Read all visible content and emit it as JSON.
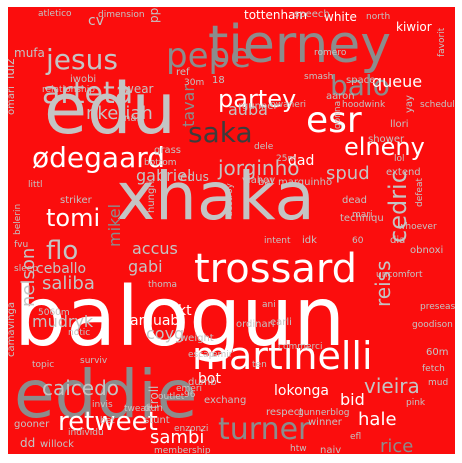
{
  "palette": {
    "background": "#fb0d0d",
    "silver": "#c4c4c4",
    "gray": "#8c8c8c",
    "dark_gray": "#5a5a5a",
    "white": "#ffffff",
    "charcoal": "#3c3c3c"
  },
  "words": [
    {
      "text": "balogun",
      "color": "white"
    },
    {
      "text": "xhaka",
      "color": "silver"
    },
    {
      "text": "edu",
      "color": "silver"
    },
    {
      "text": "eddie",
      "color": "gray"
    },
    {
      "text": "tierney",
      "color": "gray"
    },
    {
      "text": "trossard",
      "color": "white"
    },
    {
      "text": "martinelli",
      "color": "white"
    },
    {
      "text": "esr",
      "color": "white"
    },
    {
      "text": "pepe",
      "color": "gray"
    },
    {
      "text": "arteta",
      "color": "silver"
    },
    {
      "text": "jesus",
      "color": "silver"
    },
    {
      "text": "ødegaard",
      "color": "white"
    },
    {
      "text": "saka",
      "color": "charcoal"
    },
    {
      "text": "balo",
      "color": "gray"
    },
    {
      "text": "partey",
      "color": "white"
    },
    {
      "text": "elneny",
      "color": "white"
    },
    {
      "text": "tomi",
      "color": "white"
    },
    {
      "text": "turner",
      "color": "gray"
    },
    {
      "text": "retweet",
      "color": "white"
    },
    {
      "text": "flo",
      "color": "silver"
    },
    {
      "text": "cedric",
      "color": "silver"
    },
    {
      "text": "jorginho",
      "color": "silver"
    },
    {
      "text": "caicedo",
      "color": "silver"
    },
    {
      "text": "vieira",
      "color": "silver"
    },
    {
      "text": "spud",
      "color": "silver"
    },
    {
      "text": "nketiah",
      "color": "silver"
    },
    {
      "text": "auba",
      "color": "silver"
    },
    {
      "text": "saliba",
      "color": "silver"
    },
    {
      "text": "gabriel",
      "color": "silver"
    },
    {
      "text": "gabi",
      "color": "silver"
    },
    {
      "text": "accus",
      "color": "silver"
    },
    {
      "text": "reiss",
      "color": "silver"
    },
    {
      "text": "nelson",
      "color": "silver"
    },
    {
      "text": "mikel",
      "color": "gray"
    },
    {
      "text": "tavar",
      "color": "gray"
    },
    {
      "text": "hale",
      "color": "white"
    },
    {
      "text": "sambi",
      "color": "white"
    },
    {
      "text": "rice",
      "color": "gray"
    },
    {
      "text": "bid",
      "color": "white"
    },
    {
      "text": "lokonga",
      "color": "white"
    },
    {
      "text": "coyg",
      "color": "silver"
    },
    {
      "text": "mudryk",
      "color": "silver"
    },
    {
      "text": "ceballo",
      "color": "silver"
    },
    {
      "text": "queue",
      "color": "white"
    },
    {
      "text": "dad",
      "color": "white"
    },
    {
      "text": "tottenham",
      "color": "white"
    },
    {
      "text": "white",
      "color": "white"
    },
    {
      "text": "kiwior",
      "color": "white"
    },
    {
      "text": "arguabl",
      "color": "white"
    },
    {
      "text": "kt",
      "color": "white"
    },
    {
      "text": "bot",
      "color": "white"
    },
    {
      "text": "troll",
      "color": "silver"
    },
    {
      "text": "mufa",
      "color": "silver"
    },
    {
      "text": "wear",
      "color": "silver"
    },
    {
      "text": "iwobi",
      "color": "silver"
    },
    {
      "text": "cv",
      "color": "silver"
    },
    {
      "text": "pps",
      "color": "silver"
    },
    {
      "text": "speech",
      "color": "silver"
    },
    {
      "text": "north",
      "color": "silver"
    },
    {
      "text": "atletico",
      "color": "silver"
    },
    {
      "text": "dimension",
      "color": "silver"
    },
    {
      "text": "luiz",
      "color": "silver"
    },
    {
      "text": "relationship",
      "color": "silver"
    },
    {
      "text": "smash",
      "color": "silver"
    },
    {
      "text": "space",
      "color": "silver"
    },
    {
      "text": "aaron",
      "color": "silver"
    },
    {
      "text": "rgunner",
      "color": "silver"
    },
    {
      "text": "nwaneri",
      "color": "silver"
    },
    {
      "text": "omari",
      "color": "silver"
    },
    {
      "text": "nah",
      "color": "silver"
    },
    {
      "text": "shower",
      "color": "silver"
    },
    {
      "text": "extend",
      "color": "silver"
    },
    {
      "text": "llori",
      "color": "silver"
    },
    {
      "text": "gonna",
      "color": "silver"
    },
    {
      "text": "edus",
      "color": "silver"
    },
    {
      "text": "striker",
      "color": "silver"
    },
    {
      "text": "grass",
      "color": "silver"
    },
    {
      "text": "bottom",
      "color": "silver"
    },
    {
      "text": "hungri",
      "color": "silver"
    },
    {
      "text": "vlahov",
      "color": "silver"
    },
    {
      "text": "destroy",
      "color": "silver"
    },
    {
      "text": "marquinho",
      "color": "silver"
    },
    {
      "text": "techniqu",
      "color": "silver"
    },
    {
      "text": "intent",
      "color": "silver"
    },
    {
      "text": "idk",
      "color": "silver"
    },
    {
      "text": "dead",
      "color": "silver"
    },
    {
      "text": "mari",
      "color": "silver"
    },
    {
      "text": "defeat",
      "color": "silver"
    },
    {
      "text": "whoever",
      "color": "silver"
    },
    {
      "text": "obnoxi",
      "color": "silver"
    },
    {
      "text": "dia",
      "color": "silver"
    },
    {
      "text": "thoma",
      "color": "silver"
    },
    {
      "text": "camavinga",
      "color": "silver"
    },
    {
      "text": "topic",
      "color": "silver"
    },
    {
      "text": "surviv",
      "color": "silver"
    },
    {
      "text": "preseason",
      "color": "silver"
    },
    {
      "text": "goodison",
      "color": "silver"
    },
    {
      "text": "60m",
      "color": "silver"
    },
    {
      "text": "fetch",
      "color": "silver"
    },
    {
      "text": "mud",
      "color": "silver"
    },
    {
      "text": "weight",
      "color": "silver"
    },
    {
      "text": "escap",
      "color": "silver"
    },
    {
      "text": "emir",
      "color": "silver"
    },
    {
      "text": "commerci",
      "color": "silver"
    },
    {
      "text": "ordinari",
      "color": "silver"
    },
    {
      "text": "earli",
      "color": "silver"
    },
    {
      "text": "emeri",
      "color": "silver"
    },
    {
      "text": "exchang",
      "color": "silver"
    },
    {
      "text": "dumb",
      "color": "silver"
    },
    {
      "text": "dun",
      "color": "silver"
    },
    {
      "text": "stunt",
      "color": "silver"
    },
    {
      "text": "outlet",
      "color": "silver"
    },
    {
      "text": "tweak",
      "color": "silver"
    },
    {
      "text": "winner",
      "color": "silver"
    },
    {
      "text": "efl",
      "color": "silver"
    },
    {
      "text": "pink",
      "color": "silver"
    },
    {
      "text": "dd",
      "color": "silver"
    },
    {
      "text": "willock",
      "color": "silver"
    },
    {
      "text": "gooner",
      "color": "silver"
    },
    {
      "text": "enzonzi",
      "color": "silver"
    },
    {
      "text": "membership",
      "color": "silver"
    },
    {
      "text": "naiv",
      "color": "silver"
    },
    {
      "text": "respect",
      "color": "silver"
    },
    {
      "text": "gunnerblog",
      "color": "silver"
    },
    {
      "text": "invis",
      "color": "silver"
    },
    {
      "text": "individu",
      "color": "silver"
    },
    {
      "text": "bet",
      "color": "silver"
    },
    {
      "text": "sleep",
      "color": "silver"
    },
    {
      "text": "notic",
      "color": "silver"
    },
    {
      "text": "littl",
      "color": "silver"
    },
    {
      "text": "belerin",
      "color": "silver"
    },
    {
      "text": "fvu",
      "color": "silver"
    },
    {
      "text": "schedul",
      "color": "silver"
    },
    {
      "text": "favorit",
      "color": "silver"
    },
    {
      "text": "yay",
      "color": "silver"
    },
    {
      "text": "lol",
      "color": "silver"
    },
    {
      "text": "ref",
      "color": "silver"
    },
    {
      "text": "30m",
      "color": "silver"
    },
    {
      "text": "18",
      "color": "silver"
    },
    {
      "text": "romero",
      "color": "silver"
    },
    {
      "text": "dele",
      "color": "silver"
    },
    {
      "text": "bal",
      "color": "silver"
    },
    {
      "text": "25m",
      "color": "silver"
    },
    {
      "text": "96",
      "color": "silver"
    },
    {
      "text": "60",
      "color": "silver"
    },
    {
      "text": "ten",
      "color": "silver"
    },
    {
      "text": "htw",
      "color": "silver"
    },
    {
      "text": "5060m",
      "color": "silver"
    },
    {
      "text": "ani",
      "color": "silver"
    },
    {
      "text": "uncomfort",
      "color": "silver"
    },
    {
      "text": "hoodwink",
      "color": "silver"
    }
  ]
}
